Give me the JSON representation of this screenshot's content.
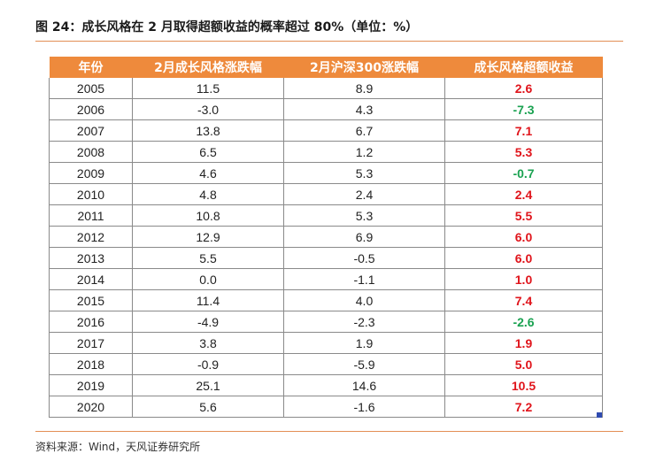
{
  "figure": {
    "title": "图 24：成长风格在 2 月取得超额收益的概率超过 80%（单位：%）",
    "source": "资料来源：Wind，天风证券研究所"
  },
  "table": {
    "headers": [
      "年份",
      "2月成长风格涨跌幅",
      "2月沪深300涨跌幅",
      "成长风格超额收益"
    ],
    "rows": [
      [
        "2005",
        "11.5",
        "8.9",
        "2.6"
      ],
      [
        "2006",
        "-3.0",
        "4.3",
        "-7.3"
      ],
      [
        "2007",
        "13.8",
        "6.7",
        "7.1"
      ],
      [
        "2008",
        "6.5",
        "1.2",
        "5.3"
      ],
      [
        "2009",
        "4.6",
        "5.3",
        "-0.7"
      ],
      [
        "2010",
        "4.8",
        "2.4",
        "2.4"
      ],
      [
        "2011",
        "10.8",
        "5.3",
        "5.5"
      ],
      [
        "2012",
        "12.9",
        "6.9",
        "6.0"
      ],
      [
        "2013",
        "5.5",
        "-0.5",
        "6.0"
      ],
      [
        "2014",
        "0.0",
        "-1.1",
        "1.0"
      ],
      [
        "2015",
        "11.4",
        "4.0",
        "7.4"
      ],
      [
        "2016",
        "-4.9",
        "-2.3",
        "-2.6"
      ],
      [
        "2017",
        "3.8",
        "1.9",
        "1.9"
      ],
      [
        "2018",
        "-0.9",
        "-5.9",
        "5.0"
      ],
      [
        "2019",
        "25.1",
        "14.6",
        "10.5"
      ],
      [
        "2020",
        "5.6",
        "-1.6",
        "7.2"
      ]
    ]
  },
  "colors": {
    "header_bg": "#ee8a3c",
    "rule": "#e38f55",
    "positive": "#e0141b",
    "negative": "#1aa251"
  }
}
